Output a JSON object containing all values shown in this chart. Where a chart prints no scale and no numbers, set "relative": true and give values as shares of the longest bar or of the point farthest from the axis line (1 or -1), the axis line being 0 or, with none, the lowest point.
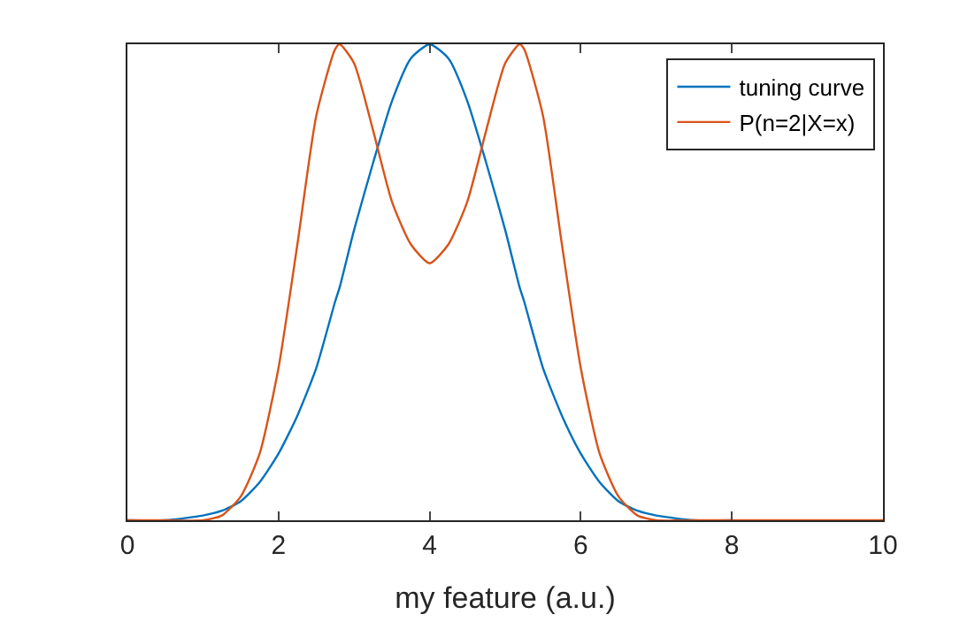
{
  "chart_data": {
    "type": "line",
    "relative": true,
    "xlabel": "my feature (a.u.)",
    "x": [
      0,
      0.5,
      1,
      1.25,
      1.5,
      1.75,
      2,
      2.25,
      2.5,
      2.75,
      2.81,
      3,
      3.25,
      3.5,
      3.75,
      4,
      4.25,
      4.5,
      4.75,
      5,
      5.19,
      5.25,
      5.5,
      5.75,
      6,
      6.25,
      6.5,
      6.75,
      7,
      7.5,
      8,
      9,
      10
    ],
    "series": [
      {
        "name": "tuning curve",
        "color": "#0072bd",
        "values": [
          0,
          0,
          0.01,
          0.02,
          0.04,
          0.08,
          0.14,
          0.22,
          0.32,
          0.46,
          0.49,
          0.61,
          0.75,
          0.88,
          0.97,
          1,
          0.97,
          0.88,
          0.75,
          0.61,
          0.49,
          0.46,
          0.32,
          0.22,
          0.14,
          0.08,
          0.04,
          0.02,
          0.01,
          0,
          0,
          null,
          null
        ]
      },
      {
        "name": "P(n=2|X=x)",
        "color": "#d95319",
        "values": [
          0,
          0,
          0,
          0.01,
          0.05,
          0.14,
          0.32,
          0.58,
          0.85,
          0.99,
          1,
          0.96,
          0.82,
          0.67,
          0.58,
          0.54,
          0.58,
          0.67,
          0.82,
          0.96,
          1,
          0.99,
          0.85,
          0.58,
          0.32,
          0.14,
          0.05,
          0.01,
          0,
          0,
          0,
          0,
          0
        ]
      }
    ],
    "xlim": [
      0,
      10
    ],
    "xticks": [
      0,
      2,
      4,
      6,
      8,
      10
    ],
    "legend": "top right",
    "line_style": "solid",
    "marker": "none"
  }
}
